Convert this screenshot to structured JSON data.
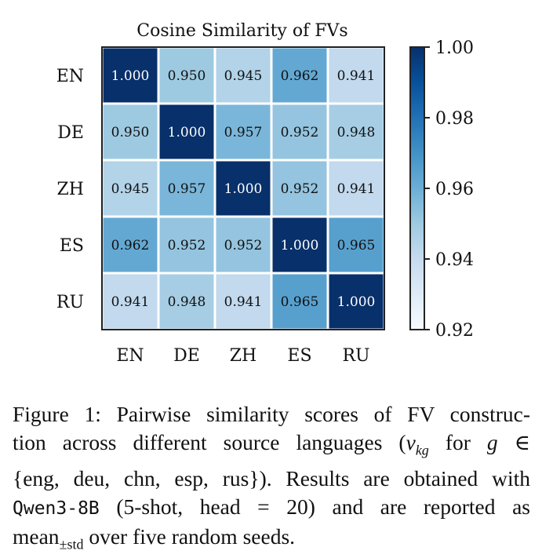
{
  "chart_data": {
    "type": "heatmap",
    "title": "Cosine Similarity of FVs",
    "row_labels": [
      "EN",
      "DE",
      "ZH",
      "ES",
      "RU"
    ],
    "col_labels": [
      "EN",
      "DE",
      "ZH",
      "ES",
      "RU"
    ],
    "values": [
      [
        1.0,
        0.95,
        0.945,
        0.962,
        0.941
      ],
      [
        0.95,
        1.0,
        0.957,
        0.952,
        0.948
      ],
      [
        0.945,
        0.957,
        1.0,
        0.952,
        0.941
      ],
      [
        0.962,
        0.952,
        0.952,
        1.0,
        0.965
      ],
      [
        0.941,
        0.948,
        0.941,
        0.965,
        1.0
      ]
    ],
    "colorbar": {
      "range": [
        0.92,
        1.0
      ],
      "ticks": [
        0.92,
        0.94,
        0.96,
        0.98,
        1.0
      ],
      "tick_labels": [
        "0.92",
        "0.94",
        "0.96",
        "0.98",
        "1.00"
      ],
      "colormap": "Blues"
    }
  },
  "caption": {
    "line1": "Figure 1: Pairwise similarity scores of FV construc-",
    "line2_a": "tion across different source languages (",
    "line2_v": "v",
    "line2_sub": "kg",
    "line2_b": " for ",
    "line2_g": "g",
    "line2_in": " ∈",
    "line3_set": "{eng, deu, chn, esp, rus}",
    "line3_b": ").  Results are obtained with",
    "line4_model": "Qwen3-8B",
    "line4_b": " (5-shot, head = 20) and are reported as",
    "line5_mean": "mean",
    "line5_sub": "±std",
    "line5_b": " over five random seeds."
  }
}
